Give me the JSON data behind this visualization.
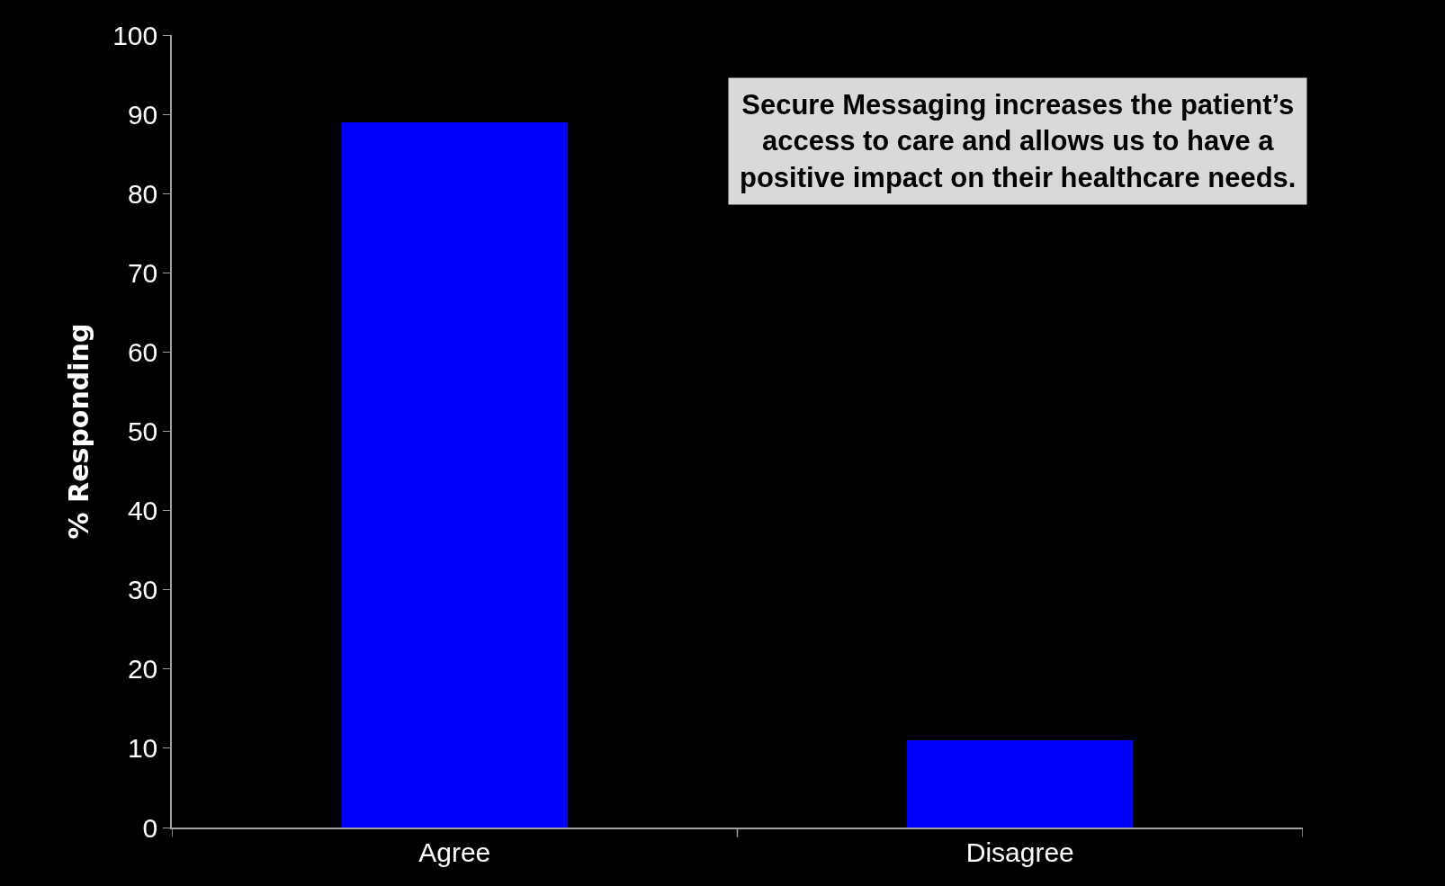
{
  "chart_data": {
    "type": "bar",
    "categories": [
      "Agree",
      "Disagree"
    ],
    "values": [
      89,
      11
    ],
    "color": "#0000ff",
    "ylabel": "% Responding",
    "ylim": [
      0,
      100
    ],
    "yticks": [
      0,
      10,
      20,
      30,
      40,
      50,
      60,
      70,
      80,
      90,
      100
    ],
    "grid": false,
    "annotations": [
      "Secure Messaging increases the patient’s access to care and allows us to have a positive impact on their healthcare needs."
    ]
  }
}
